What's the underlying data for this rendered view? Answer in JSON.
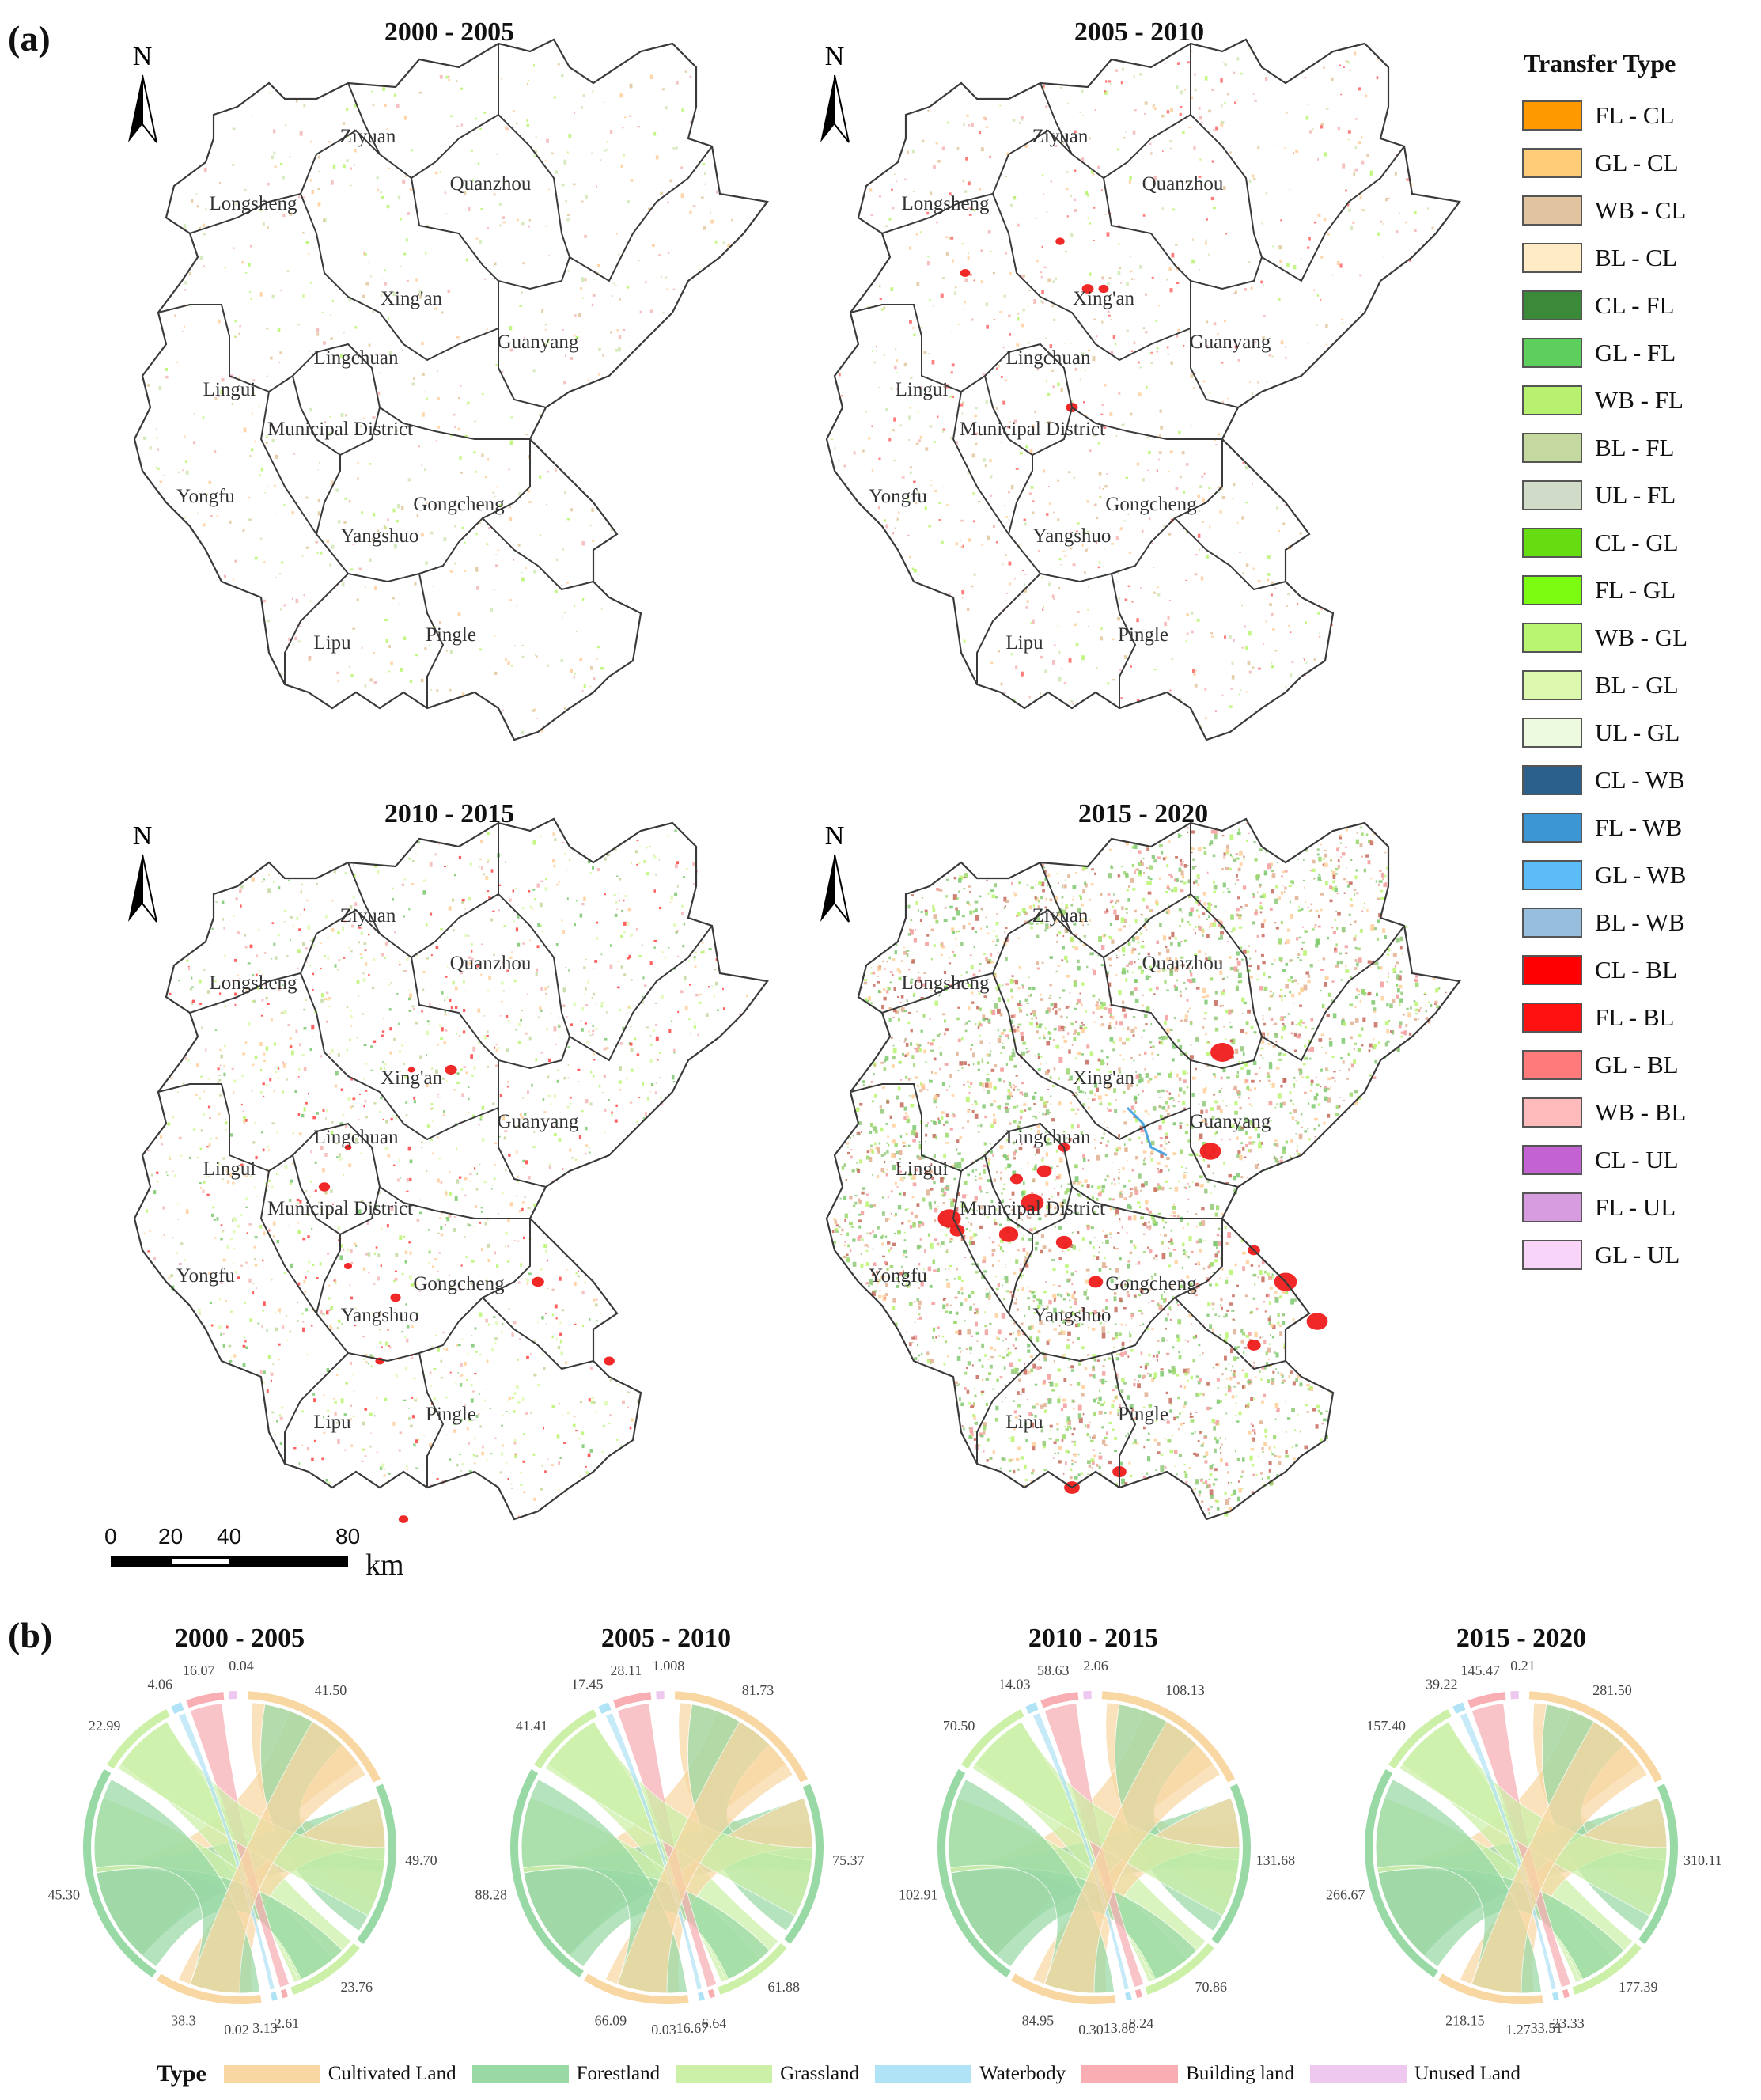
{
  "panel_a_label": "(a)",
  "panel_b_label": "(b)",
  "north_label": "N",
  "maps": [
    {
      "title": "2000 - 2005"
    },
    {
      "title": "2005 - 2010"
    },
    {
      "title": "2010 - 2015"
    },
    {
      "title": "2015 - 2020"
    }
  ],
  "districts": [
    "Ziyuan",
    "Quanzhou",
    "Longsheng",
    "Xing'an",
    "Guanyang",
    "Lingchuan",
    "Lingui",
    "Municipal District",
    "Yongfu",
    "Gongcheng",
    "Yangshuo",
    "Lipu",
    "Pingle"
  ],
  "scale_bar": {
    "ticks": [
      "0",
      "20",
      "40",
      "80"
    ],
    "unit": "km"
  },
  "transfer_legend": {
    "title": "Transfer Type",
    "items": [
      {
        "label": "FL - CL",
        "color": "#ff9900"
      },
      {
        "label": "GL - CL",
        "color": "#ffcc77"
      },
      {
        "label": "WB - CL",
        "color": "#dfc49f"
      },
      {
        "label": "BL - CL",
        "color": "#ffebc4"
      },
      {
        "label": "CL - FL",
        "color": "#3a8a3a"
      },
      {
        "label": "GL - FL",
        "color": "#5ccf5c"
      },
      {
        "label": "WB - FL",
        "color": "#b8f070"
      },
      {
        "label": "BL - FL",
        "color": "#c4d8a0"
      },
      {
        "label": "UL - FL",
        "color": "#d0dcc8"
      },
      {
        "label": "CL - GL",
        "color": "#66dd11"
      },
      {
        "label": "FL - GL",
        "color": "#7cfc11"
      },
      {
        "label": "WB - GL",
        "color": "#b9f570"
      },
      {
        "label": "BL - GL",
        "color": "#ddf9b0"
      },
      {
        "label": "UL - GL",
        "color": "#eefadf"
      },
      {
        "label": "CL - WB",
        "color": "#2b5f8c"
      },
      {
        "label": "FL - WB",
        "color": "#3c96d4"
      },
      {
        "label": "GL - WB",
        "color": "#5bbcf8"
      },
      {
        "label": "BL - WB",
        "color": "#97bedc"
      },
      {
        "label": "CL - BL",
        "color": "#ff0000"
      },
      {
        "label": "FL - BL",
        "color": "#ff1111"
      },
      {
        "label": "GL - BL",
        "color": "#ff7b7b"
      },
      {
        "label": "WB - BL",
        "color": "#ffbbbb"
      },
      {
        "label": "CL - UL",
        "color": "#c362d2"
      },
      {
        "label": "FL - UL",
        "color": "#d79be0"
      },
      {
        "label": "GL - UL",
        "color": "#f9d4f9"
      }
    ]
  },
  "chord_charts": [
    {
      "title": "2000 - 2005",
      "labels": [
        "0.04",
        "41.50",
        "49.70",
        "23.76",
        "2.61",
        "3.13",
        "0.02",
        "38.3",
        "45.30",
        "22.99",
        "4.06",
        "16.07"
      ]
    },
    {
      "title": "2005 - 2010",
      "labels": [
        "1.008",
        "81.73",
        "75.37",
        "61.88",
        "6.64",
        "16.67",
        "0.03",
        "66.09",
        "88.28",
        "41.41",
        "17.45",
        "28.11"
      ]
    },
    {
      "title": "2010 - 2015",
      "labels": [
        "2.06",
        "108.13",
        "131.68",
        "70.86",
        "8.24",
        "13.86",
        "0.30",
        "84.95",
        "102.91",
        "70.50",
        "14.03",
        "58.63"
      ]
    },
    {
      "title": "2015 - 2020",
      "labels": [
        "0.21",
        "281.50",
        "310.11",
        "177.39",
        "23.33",
        "33.51",
        "1.27",
        "218.15",
        "266.67",
        "157.40",
        "39.22",
        "145.47"
      ]
    }
  ],
  "type_legend": {
    "key": "Type",
    "items": [
      {
        "label": "Cultivated Land",
        "color": "#f8d7a3"
      },
      {
        "label": "Forestland",
        "color": "#99d9a6"
      },
      {
        "label": "Grassland",
        "color": "#ccf0a8"
      },
      {
        "label": "Waterbody",
        "color": "#b1e3f6"
      },
      {
        "label": "Building land",
        "color": "#f8aeb2"
      },
      {
        "label": "Unused Land",
        "color": "#efc8ef"
      }
    ]
  }
}
